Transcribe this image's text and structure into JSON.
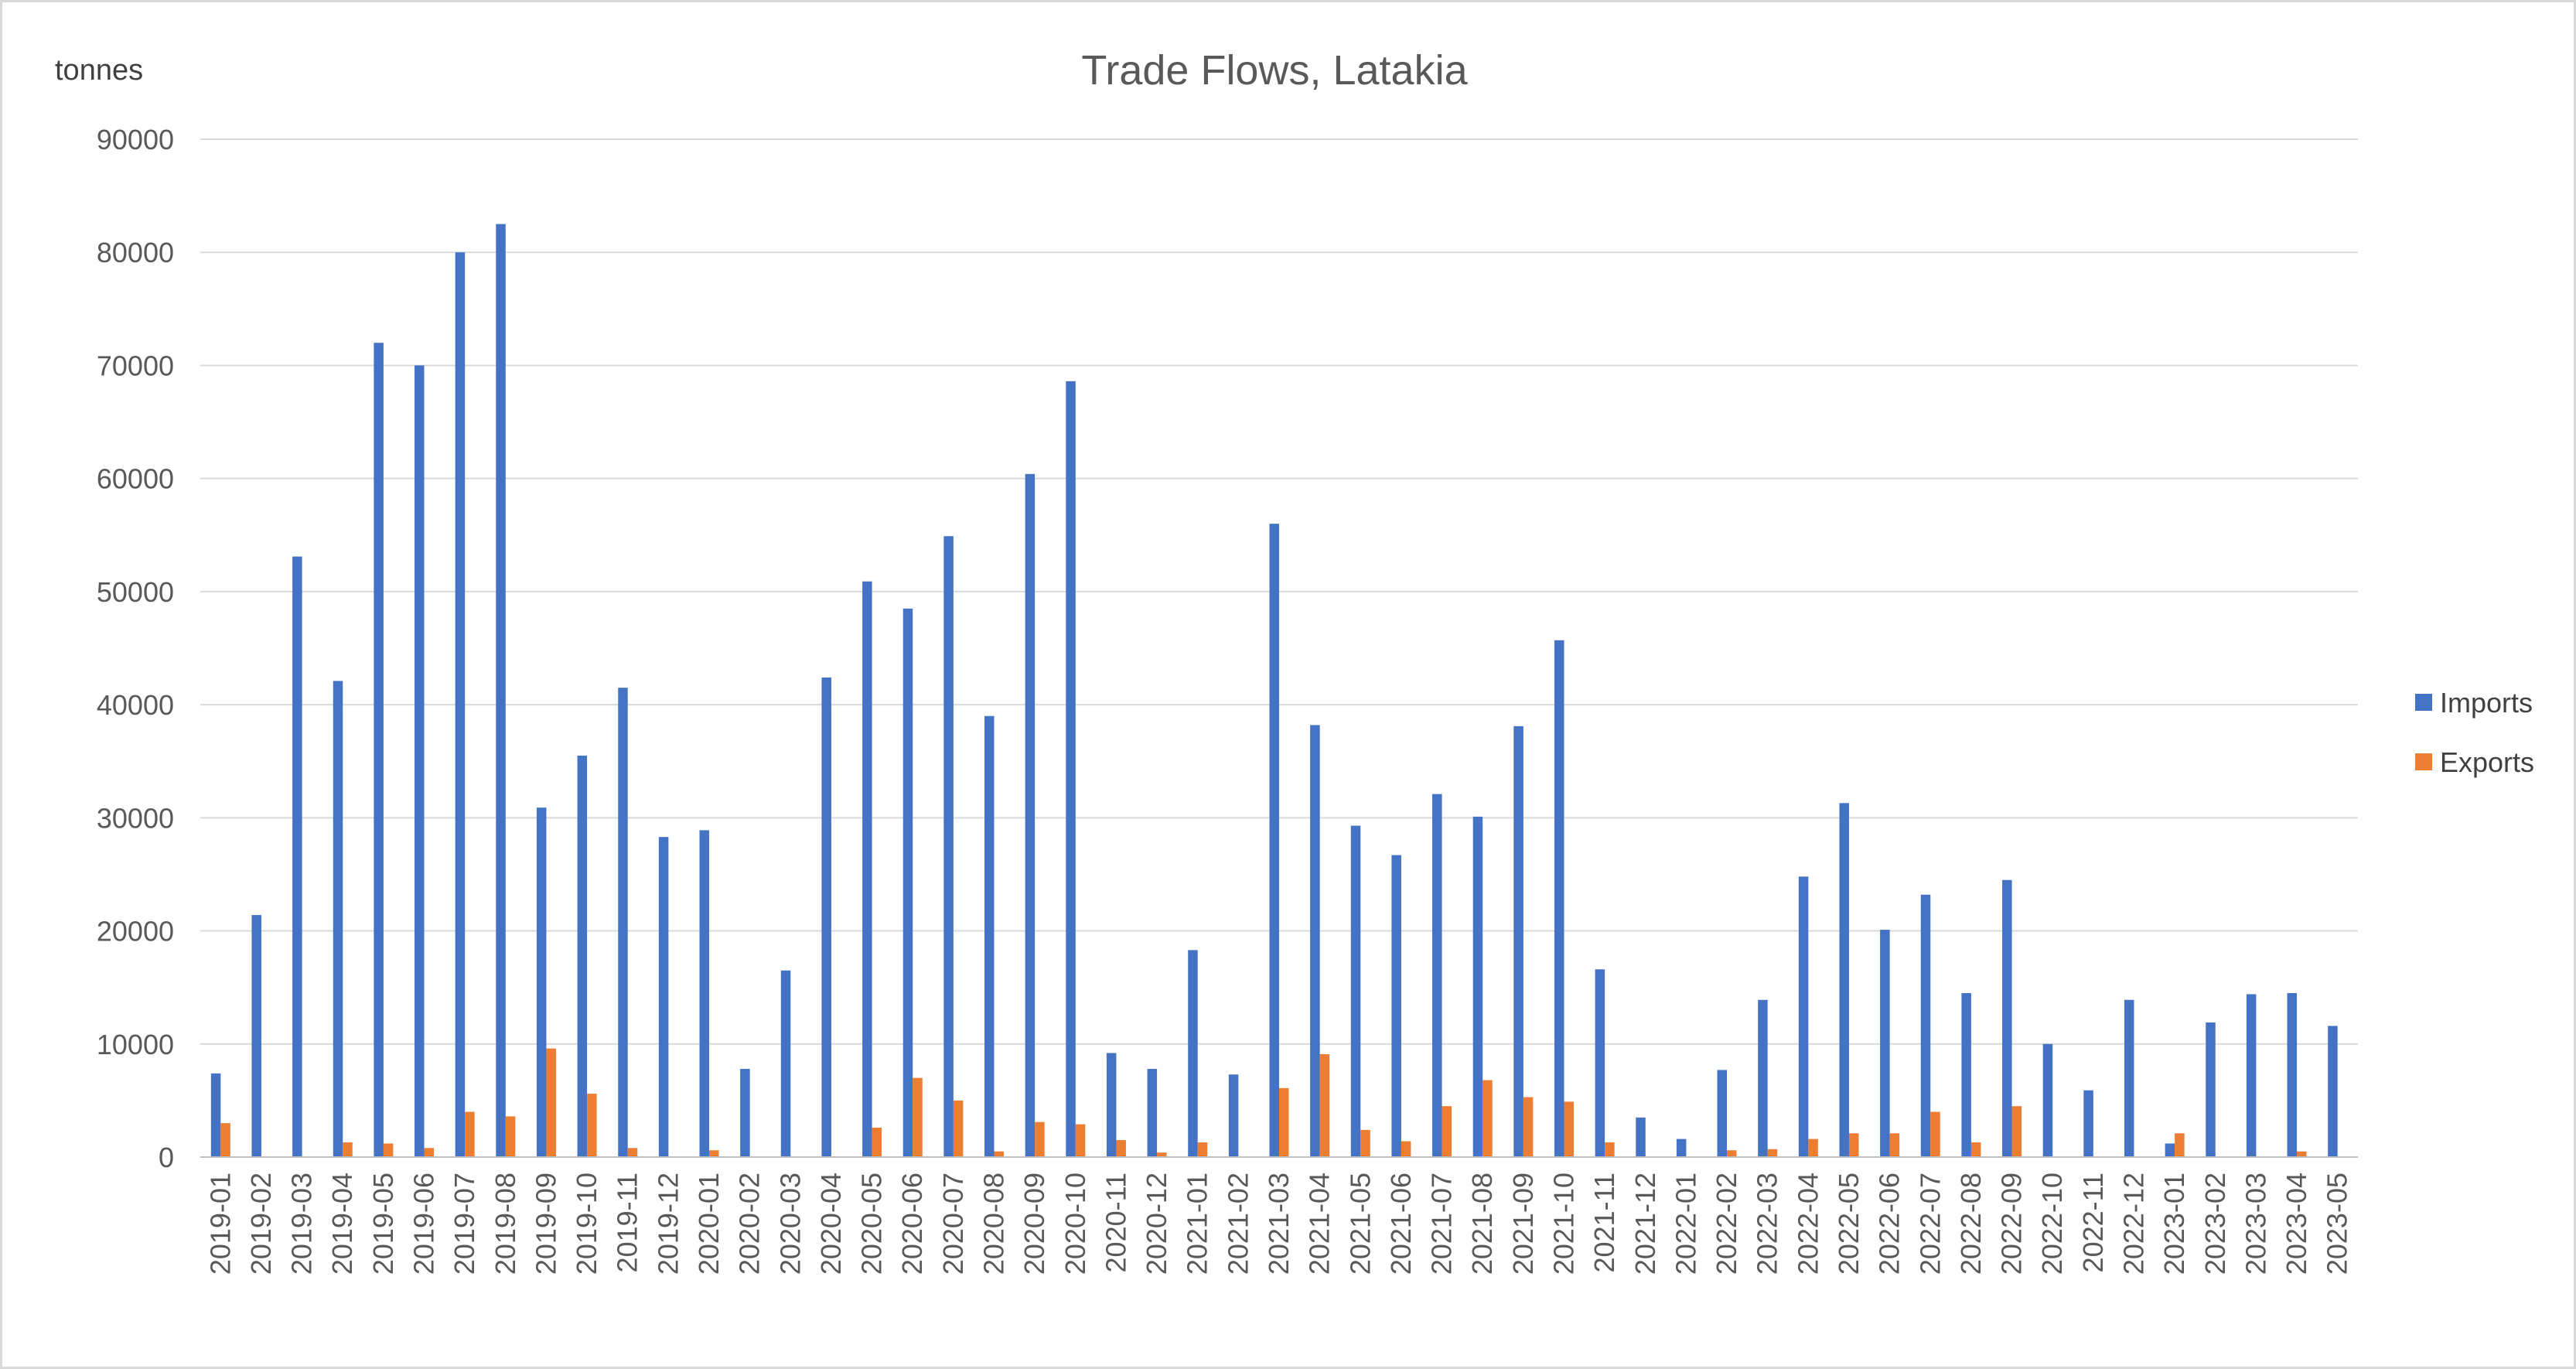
{
  "chart_data": {
    "type": "bar",
    "title": "Trade Flows, Latakia",
    "ylabel": "tonnes",
    "xlabel": "",
    "ylim": [
      0,
      90000
    ],
    "yticks": [
      0,
      10000,
      20000,
      30000,
      40000,
      50000,
      60000,
      70000,
      80000,
      90000
    ],
    "grid": true,
    "legend_position": "right",
    "categories": [
      "2019-01",
      "2019-02",
      "2019-03",
      "2019-04",
      "2019-05",
      "2019-06",
      "2019-07",
      "2019-08",
      "2019-09",
      "2019-10",
      "2019-11",
      "2019-12",
      "2020-01",
      "2020-02",
      "2020-03",
      "2020-04",
      "2020-05",
      "2020-06",
      "2020-07",
      "2020-08",
      "2020-09",
      "2020-10",
      "2020-11",
      "2020-12",
      "2021-01",
      "2021-02",
      "2021-03",
      "2021-04",
      "2021-05",
      "2021-06",
      "2021-07",
      "2021-08",
      "2021-09",
      "2021-10",
      "2021-11",
      "2021-12",
      "2022-01",
      "2022-02",
      "2022-03",
      "2022-04",
      "2022-05",
      "2022-06",
      "2022-07",
      "2022-08",
      "2022-09",
      "2022-10",
      "2022-11",
      "2022-12",
      "2023-01",
      "2023-02",
      "2023-03",
      "2023-04",
      "2023-05"
    ],
    "series": [
      {
        "name": "Imports",
        "color": "#4472c4",
        "values": [
          7400,
          21400,
          53100,
          42100,
          72000,
          70000,
          80000,
          82500,
          30900,
          35500,
          41500,
          28300,
          28900,
          7800,
          16500,
          42400,
          50900,
          48500,
          54900,
          39000,
          60400,
          68600,
          9200,
          7800,
          18300,
          7300,
          56000,
          38200,
          29300,
          26700,
          32100,
          30100,
          38100,
          45700,
          16600,
          3500,
          1600,
          7700,
          13900,
          24800,
          31300,
          20100,
          23200,
          14500,
          24500,
          10000,
          5900,
          13900,
          1200,
          11900,
          14400,
          14500,
          11600
        ]
      },
      {
        "name": "Exports",
        "color": "#ed7d31",
        "values": [
          3000,
          0,
          0,
          1300,
          1200,
          800,
          4000,
          3600,
          9600,
          5600,
          800,
          0,
          600,
          0,
          0,
          0,
          2600,
          7000,
          5000,
          500,
          3100,
          2900,
          1500,
          400,
          1300,
          0,
          6100,
          9100,
          2400,
          1400,
          4500,
          6800,
          5300,
          4900,
          1300,
          0,
          0,
          600,
          700,
          1600,
          2100,
          2100,
          4000,
          1300,
          4500,
          0,
          0,
          0,
          2100,
          0,
          0,
          500,
          0
        ]
      }
    ]
  }
}
